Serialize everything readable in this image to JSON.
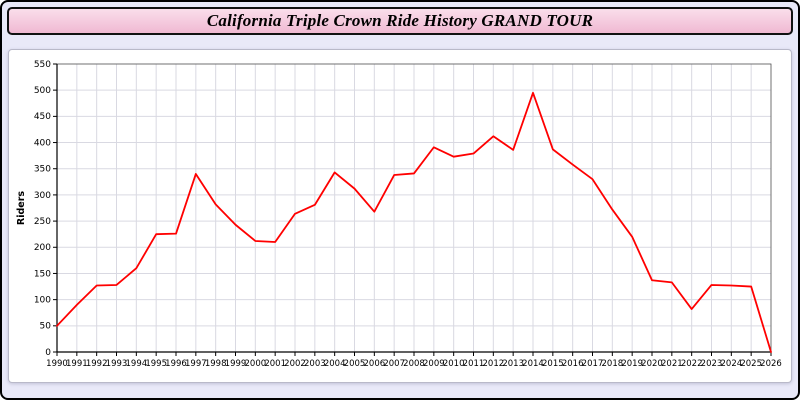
{
  "header": {
    "title": "California Triple Crown Ride History GRAND TOUR"
  },
  "colors": {
    "page_background": "#e9e9f8",
    "title_bar_pink": "#f3c3d8",
    "line": "#ff0000",
    "grid": "#d9d9e2",
    "axis": "#000000",
    "plot_background": "#ffffff"
  },
  "chart_data": {
    "type": "line",
    "title": "California Triple Crown Ride History GRAND TOUR",
    "xlabel": "",
    "ylabel": "Riders",
    "ylim": [
      0,
      550
    ],
    "ytick_step": 50,
    "grid": true,
    "legend": "none",
    "line_color": "#ff0000",
    "x": [
      1990,
      1991,
      1992,
      1993,
      1994,
      1995,
      1996,
      1997,
      1998,
      1999,
      2000,
      2001,
      2002,
      2003,
      2004,
      2005,
      2006,
      2007,
      2008,
      2009,
      2010,
      2011,
      2012,
      2013,
      2014,
      2015,
      2016,
      2017,
      2018,
      2019,
      2020,
      2021,
      2022,
      2023,
      2024,
      2025,
      2026
    ],
    "values": [
      50,
      90,
      127,
      128,
      160,
      225,
      226,
      340,
      282,
      243,
      212,
      210,
      264,
      281,
      343,
      312,
      268,
      338,
      341,
      391,
      373,
      379,
      412,
      386,
      495,
      387,
      358,
      330,
      272,
      220,
      137,
      133,
      82,
      128,
      127,
      125,
      0
    ]
  }
}
